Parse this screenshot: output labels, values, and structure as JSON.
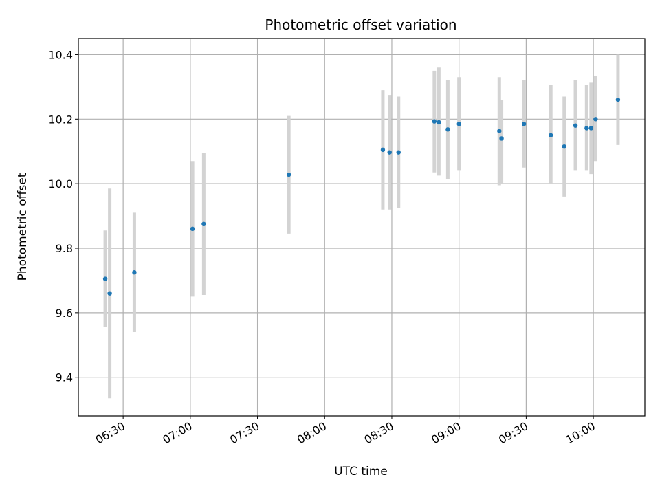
{
  "chart_data": {
    "type": "scatter",
    "title": "Photometric offset variation",
    "xlabel": "UTC time",
    "ylabel": "Photometric offset",
    "x_ticks": [
      "06:30",
      "07:00",
      "07:30",
      "08:00",
      "08:30",
      "09:00",
      "09:30",
      "10:00"
    ],
    "y_ticks": [
      "9.4",
      "9.6",
      "9.8",
      "10.0",
      "10.2",
      "10.4"
    ],
    "xlim": [
      "06:10",
      "10:23"
    ],
    "ylim": [
      9.28,
      10.45
    ],
    "grid": true,
    "series": [
      {
        "marker_color": "#1f77b4",
        "errorbar_color": "#d3d3d3",
        "points": [
          {
            "time": "06:22",
            "value": 9.705,
            "low": 9.555,
            "high": 9.855
          },
          {
            "time": "06:24",
            "value": 9.66,
            "low": 9.335,
            "high": 9.985
          },
          {
            "time": "06:35",
            "value": 9.725,
            "low": 9.54,
            "high": 9.91
          },
          {
            "time": "07:01",
            "value": 9.86,
            "low": 9.65,
            "high": 10.07
          },
          {
            "time": "07:06",
            "value": 9.875,
            "low": 9.655,
            "high": 10.095
          },
          {
            "time": "07:44",
            "value": 10.028,
            "low": 9.845,
            "high": 10.21
          },
          {
            "time": "08:26",
            "value": 10.105,
            "low": 9.92,
            "high": 10.29
          },
          {
            "time": "08:29",
            "value": 10.097,
            "low": 9.92,
            "high": 10.275
          },
          {
            "time": "08:33",
            "value": 10.097,
            "low": 9.925,
            "high": 10.27
          },
          {
            "time": "08:49",
            "value": 10.193,
            "low": 10.035,
            "high": 10.35
          },
          {
            "time": "08:51",
            "value": 10.19,
            "low": 10.025,
            "high": 10.36
          },
          {
            "time": "08:55",
            "value": 10.168,
            "low": 10.015,
            "high": 10.32
          },
          {
            "time": "09:00",
            "value": 10.185,
            "low": 10.04,
            "high": 10.33
          },
          {
            "time": "09:18",
            "value": 10.163,
            "low": 9.995,
            "high": 10.33
          },
          {
            "time": "09:19",
            "value": 10.14,
            "low": 10.0,
            "high": 10.26
          },
          {
            "time": "09:29",
            "value": 10.185,
            "low": 10.05,
            "high": 10.32
          },
          {
            "time": "09:41",
            "value": 10.15,
            "low": 10.0,
            "high": 10.305
          },
          {
            "time": "09:47",
            "value": 10.115,
            "low": 9.96,
            "high": 10.27
          },
          {
            "time": "09:52",
            "value": 10.18,
            "low": 10.04,
            "high": 10.32
          },
          {
            "time": "09:57",
            "value": 10.172,
            "low": 10.04,
            "high": 10.305
          },
          {
            "time": "09:59",
            "value": 10.172,
            "low": 10.03,
            "high": 10.315
          },
          {
            "time": "10:01",
            "value": 10.2,
            "low": 10.07,
            "high": 10.335
          },
          {
            "time": "10:11",
            "value": 10.26,
            "low": 10.12,
            "high": 10.4
          }
        ]
      }
    ]
  }
}
